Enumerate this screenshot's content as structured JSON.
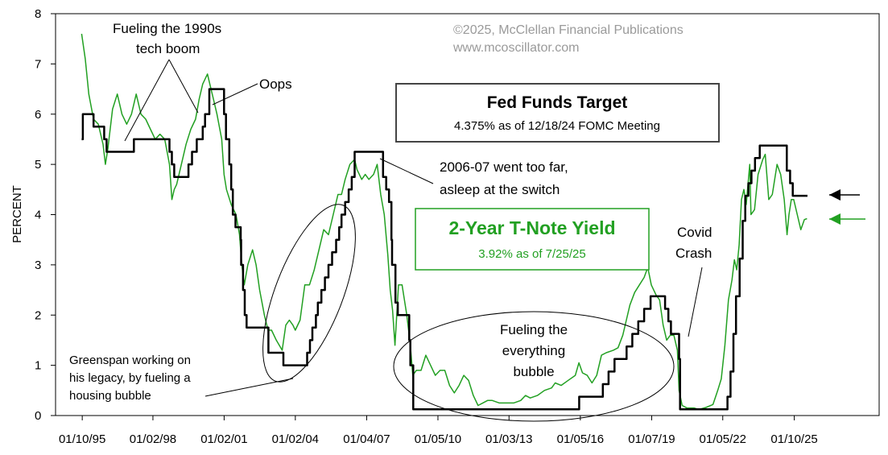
{
  "chart_data": {
    "type": "line",
    "ylabel": "PERCENT",
    "ylim": [
      0,
      8
    ],
    "y_ticks": [
      "0",
      "1",
      "2",
      "3",
      "4",
      "5",
      "6",
      "7",
      "8"
    ],
    "x_ticks": [
      "01/10/95",
      "01/02/98",
      "01/02/01",
      "01/02/04",
      "01/04/07",
      "01/05/10",
      "01/03/13",
      "01/05/16",
      "01/07/19",
      "01/05/22",
      "01/10/25"
    ],
    "xlim_years": [
      1993.9,
      2028.6
    ],
    "grid": false,
    "series": [
      {
        "name": "Fed Funds Target",
        "color": "#000000",
        "step": true,
        "points": [
          [
            1995.0,
            5.5
          ],
          [
            1995.05,
            6.0
          ],
          [
            1995.5,
            5.75
          ],
          [
            1995.95,
            5.5
          ],
          [
            1996.05,
            5.25
          ],
          [
            1997.2,
            5.5
          ],
          [
            1998.7,
            5.25
          ],
          [
            1998.8,
            5.0
          ],
          [
            1998.9,
            4.75
          ],
          [
            1999.5,
            5.0
          ],
          [
            1999.65,
            5.25
          ],
          [
            1999.85,
            5.5
          ],
          [
            2000.1,
            5.75
          ],
          [
            2000.2,
            6.0
          ],
          [
            2000.38,
            6.5
          ],
          [
            2001.0,
            6.0
          ],
          [
            2001.08,
            5.5
          ],
          [
            2001.22,
            5.0
          ],
          [
            2001.3,
            4.5
          ],
          [
            2001.37,
            4.0
          ],
          [
            2001.48,
            3.75
          ],
          [
            2001.7,
            3.5
          ],
          [
            2001.72,
            3.0
          ],
          [
            2001.8,
            2.5
          ],
          [
            2001.87,
            2.0
          ],
          [
            2001.95,
            1.75
          ],
          [
            2002.87,
            1.25
          ],
          [
            2003.5,
            1.0
          ],
          [
            2004.5,
            1.25
          ],
          [
            2004.62,
            1.5
          ],
          [
            2004.72,
            1.75
          ],
          [
            2004.87,
            2.0
          ],
          [
            2004.95,
            2.25
          ],
          [
            2005.1,
            2.5
          ],
          [
            2005.25,
            2.75
          ],
          [
            2005.4,
            3.0
          ],
          [
            2005.55,
            3.25
          ],
          [
            2005.72,
            3.5
          ],
          [
            2005.85,
            3.75
          ],
          [
            2005.95,
            4.0
          ],
          [
            2006.1,
            4.25
          ],
          [
            2006.25,
            4.5
          ],
          [
            2006.38,
            4.75
          ],
          [
            2006.5,
            5.25
          ],
          [
            2007.7,
            4.75
          ],
          [
            2007.83,
            4.5
          ],
          [
            2007.95,
            4.25
          ],
          [
            2008.05,
            3.5
          ],
          [
            2008.08,
            3.0
          ],
          [
            2008.22,
            2.25
          ],
          [
            2008.32,
            2.0
          ],
          [
            2008.8,
            1.5
          ],
          [
            2008.85,
            1.0
          ],
          [
            2008.97,
            0.125
          ],
          [
            2015.96,
            0.375
          ],
          [
            2016.96,
            0.625
          ],
          [
            2017.2,
            0.875
          ],
          [
            2017.45,
            1.125
          ],
          [
            2017.96,
            1.375
          ],
          [
            2018.2,
            1.625
          ],
          [
            2018.45,
            1.875
          ],
          [
            2018.7,
            2.125
          ],
          [
            2018.97,
            2.375
          ],
          [
            2019.58,
            2.125
          ],
          [
            2019.72,
            1.875
          ],
          [
            2019.83,
            1.625
          ],
          [
            2020.17,
            1.125
          ],
          [
            2020.21,
            0.125
          ],
          [
            2022.21,
            0.375
          ],
          [
            2022.34,
            0.875
          ],
          [
            2022.46,
            1.625
          ],
          [
            2022.57,
            2.375
          ],
          [
            2022.72,
            3.125
          ],
          [
            2022.85,
            3.875
          ],
          [
            2022.96,
            4.375
          ],
          [
            2023.09,
            4.625
          ],
          [
            2023.22,
            4.875
          ],
          [
            2023.37,
            5.125
          ],
          [
            2023.57,
            5.375
          ],
          [
            2024.71,
            4.875
          ],
          [
            2024.85,
            4.625
          ],
          [
            2024.96,
            4.375
          ],
          [
            2025.58,
            4.375
          ]
        ]
      },
      {
        "name": "2-Year T-Note Yield",
        "color": "#22a022",
        "step": false,
        "points": [
          [
            1995.0,
            7.6
          ],
          [
            1995.15,
            7.1
          ],
          [
            1995.3,
            6.4
          ],
          [
            1995.5,
            5.9
          ],
          [
            1995.7,
            5.8
          ],
          [
            1995.9,
            5.4
          ],
          [
            1996.0,
            5.0
          ],
          [
            1996.1,
            5.3
          ],
          [
            1996.3,
            6.1
          ],
          [
            1996.5,
            6.4
          ],
          [
            1996.7,
            6.0
          ],
          [
            1996.9,
            5.8
          ],
          [
            1997.1,
            6.0
          ],
          [
            1997.3,
            6.4
          ],
          [
            1997.5,
            6.0
          ],
          [
            1997.7,
            5.9
          ],
          [
            1997.9,
            5.7
          ],
          [
            1998.1,
            5.5
          ],
          [
            1998.3,
            5.6
          ],
          [
            1998.5,
            5.5
          ],
          [
            1998.7,
            5.0
          ],
          [
            1998.8,
            4.3
          ],
          [
            1998.9,
            4.5
          ],
          [
            1999.0,
            4.6
          ],
          [
            1999.2,
            5.0
          ],
          [
            1999.4,
            5.4
          ],
          [
            1999.6,
            5.7
          ],
          [
            1999.8,
            5.9
          ],
          [
            1999.95,
            6.3
          ],
          [
            2000.1,
            6.6
          ],
          [
            2000.3,
            6.8
          ],
          [
            2000.4,
            6.6
          ],
          [
            2000.55,
            6.3
          ],
          [
            2000.7,
            6.0
          ],
          [
            2000.9,
            5.5
          ],
          [
            2001.0,
            4.8
          ],
          [
            2001.1,
            4.5
          ],
          [
            2001.3,
            4.2
          ],
          [
            2001.5,
            4.0
          ],
          [
            2001.65,
            3.6
          ],
          [
            2001.75,
            3.0
          ],
          [
            2001.85,
            2.6
          ],
          [
            2002.0,
            3.0
          ],
          [
            2002.2,
            3.3
          ],
          [
            2002.35,
            3.0
          ],
          [
            2002.5,
            2.5
          ],
          [
            2002.7,
            2.0
          ],
          [
            2002.85,
            1.7
          ],
          [
            2003.0,
            1.7
          ],
          [
            2003.2,
            1.5
          ],
          [
            2003.45,
            1.3
          ],
          [
            2003.6,
            1.8
          ],
          [
            2003.75,
            1.9
          ],
          [
            2003.9,
            1.8
          ],
          [
            2004.0,
            1.7
          ],
          [
            2004.2,
            1.9
          ],
          [
            2004.4,
            2.6
          ],
          [
            2004.6,
            2.6
          ],
          [
            2004.8,
            2.9
          ],
          [
            2005.0,
            3.3
          ],
          [
            2005.2,
            3.7
          ],
          [
            2005.4,
            3.6
          ],
          [
            2005.6,
            4.0
          ],
          [
            2005.8,
            4.4
          ],
          [
            2005.95,
            4.4
          ],
          [
            2006.1,
            4.7
          ],
          [
            2006.3,
            5.0
          ],
          [
            2006.5,
            5.1
          ],
          [
            2006.6,
            4.9
          ],
          [
            2006.8,
            4.7
          ],
          [
            2006.95,
            4.8
          ],
          [
            2007.1,
            4.7
          ],
          [
            2007.3,
            4.8
          ],
          [
            2007.45,
            5.0
          ],
          [
            2007.6,
            4.4
          ],
          [
            2007.75,
            4.0
          ],
          [
            2007.9,
            3.2
          ],
          [
            2008.0,
            2.5
          ],
          [
            2008.1,
            2.1
          ],
          [
            2008.2,
            1.4
          ],
          [
            2008.35,
            2.6
          ],
          [
            2008.5,
            2.6
          ],
          [
            2008.7,
            2.0
          ],
          [
            2008.85,
            1.4
          ],
          [
            2008.95,
            0.8
          ],
          [
            2009.1,
            0.9
          ],
          [
            2009.3,
            0.9
          ],
          [
            2009.5,
            1.2
          ],
          [
            2009.7,
            1.0
          ],
          [
            2009.9,
            0.8
          ],
          [
            2010.1,
            0.9
          ],
          [
            2010.3,
            0.9
          ],
          [
            2010.5,
            0.6
          ],
          [
            2010.7,
            0.45
          ],
          [
            2010.9,
            0.6
          ],
          [
            2011.1,
            0.8
          ],
          [
            2011.3,
            0.7
          ],
          [
            2011.5,
            0.4
          ],
          [
            2011.7,
            0.2
          ],
          [
            2011.9,
            0.25
          ],
          [
            2012.1,
            0.3
          ],
          [
            2012.3,
            0.3
          ],
          [
            2012.6,
            0.25
          ],
          [
            2012.9,
            0.25
          ],
          [
            2013.2,
            0.25
          ],
          [
            2013.5,
            0.3
          ],
          [
            2013.7,
            0.4
          ],
          [
            2013.9,
            0.35
          ],
          [
            2014.2,
            0.4
          ],
          [
            2014.5,
            0.5
          ],
          [
            2014.8,
            0.55
          ],
          [
            2014.95,
            0.65
          ],
          [
            2015.2,
            0.6
          ],
          [
            2015.5,
            0.7
          ],
          [
            2015.8,
            0.8
          ],
          [
            2015.95,
            1.05
          ],
          [
            2016.1,
            0.85
          ],
          [
            2016.3,
            0.8
          ],
          [
            2016.5,
            0.65
          ],
          [
            2016.7,
            0.8
          ],
          [
            2016.9,
            1.2
          ],
          [
            2017.1,
            1.25
          ],
          [
            2017.4,
            1.3
          ],
          [
            2017.6,
            1.35
          ],
          [
            2017.8,
            1.6
          ],
          [
            2017.95,
            1.9
          ],
          [
            2018.1,
            2.2
          ],
          [
            2018.3,
            2.45
          ],
          [
            2018.5,
            2.6
          ],
          [
            2018.7,
            2.75
          ],
          [
            2018.85,
            2.95
          ],
          [
            2019.0,
            2.6
          ],
          [
            2019.2,
            2.4
          ],
          [
            2019.35,
            2.3
          ],
          [
            2019.5,
            1.8
          ],
          [
            2019.65,
            1.5
          ],
          [
            2019.8,
            1.6
          ],
          [
            2019.95,
            1.6
          ],
          [
            2020.1,
            1.3
          ],
          [
            2020.17,
            0.5
          ],
          [
            2020.3,
            0.2
          ],
          [
            2020.5,
            0.15
          ],
          [
            2020.8,
            0.15
          ],
          [
            2021.0,
            0.12
          ],
          [
            2021.3,
            0.16
          ],
          [
            2021.6,
            0.22
          ],
          [
            2021.8,
            0.5
          ],
          [
            2021.95,
            0.73
          ],
          [
            2022.1,
            1.4
          ],
          [
            2022.25,
            2.3
          ],
          [
            2022.4,
            2.7
          ],
          [
            2022.5,
            3.1
          ],
          [
            2022.6,
            2.9
          ],
          [
            2022.7,
            3.4
          ],
          [
            2022.8,
            4.3
          ],
          [
            2022.9,
            4.5
          ],
          [
            2023.0,
            4.2
          ],
          [
            2023.15,
            5.0
          ],
          [
            2023.2,
            4.0
          ],
          [
            2023.35,
            4.1
          ],
          [
            2023.5,
            4.8
          ],
          [
            2023.7,
            5.1
          ],
          [
            2023.8,
            5.2
          ],
          [
            2023.95,
            4.3
          ],
          [
            2024.1,
            4.4
          ],
          [
            2024.3,
            5.0
          ],
          [
            2024.45,
            4.8
          ],
          [
            2024.6,
            4.3
          ],
          [
            2024.72,
            3.6
          ],
          [
            2024.8,
            4.0
          ],
          [
            2024.9,
            4.3
          ],
          [
            2025.0,
            4.3
          ],
          [
            2025.15,
            4.0
          ],
          [
            2025.3,
            3.7
          ],
          [
            2025.45,
            3.9
          ],
          [
            2025.56,
            3.92
          ]
        ]
      }
    ],
    "annotations": {
      "copyright_line1": "©2025, McClellan Financial Publications",
      "copyright_line2": "www.mcoscillator.com",
      "tech_boom_line1": "Fueling the 1990s",
      "tech_boom_line2": "tech boom",
      "oops": "Oops",
      "too_far_line1": "2006-07 went too far,",
      "too_far_line2": "asleep at the switch",
      "covid_line1": "Covid",
      "covid_line2": "Crash",
      "everything_line1": "Fueling the",
      "everything_line2": "everything",
      "everything_line3": "bubble",
      "greenspan_line1": "Greenspan working on",
      "greenspan_line2": "his legacy, by fueling a",
      "greenspan_line3": "housing bubble"
    },
    "legend_boxes": {
      "fed_title": "Fed Funds Target",
      "fed_subtitle": "4.375% as of 12/18/24 FOMC Meeting",
      "tnote_title": "2-Year T-Note Yield",
      "tnote_subtitle": "3.92% as of 7/25/25"
    },
    "arrow_colors": {
      "fed": "#000000",
      "tnote": "#22a022"
    }
  }
}
